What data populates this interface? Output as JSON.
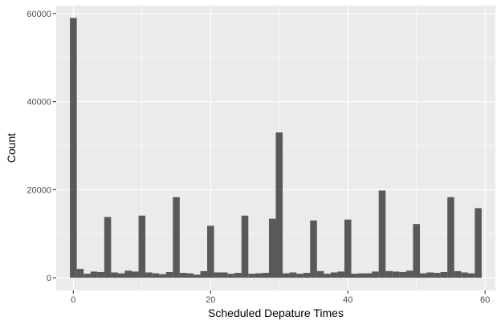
{
  "chart_data": {
    "type": "bar",
    "title": "",
    "xlabel": "Scheduled Depature Times",
    "ylabel": "Count",
    "xlim": [
      -2.5,
      61.5
    ],
    "ylim": [
      -2900,
      61800
    ],
    "xticks": [
      0,
      20,
      40,
      60
    ],
    "xtick_labels": [
      "0",
      "20",
      "40",
      "60"
    ],
    "yticks": [
      0,
      20000,
      40000,
      60000
    ],
    "ytick_labels": [
      "0",
      "20000",
      "40000",
      "60000"
    ],
    "grid": true,
    "legend": "none",
    "colors": {
      "panel": "#ebebeb",
      "grid": "#ffffff",
      "bar": "#595959"
    },
    "bin_width": 1,
    "x": [
      0,
      1,
      2,
      3,
      4,
      5,
      6,
      7,
      8,
      9,
      10,
      11,
      12,
      13,
      14,
      15,
      16,
      17,
      18,
      19,
      20,
      21,
      22,
      23,
      24,
      25,
      26,
      27,
      28,
      29,
      30,
      31,
      32,
      33,
      34,
      35,
      36,
      37,
      38,
      39,
      40,
      41,
      42,
      43,
      44,
      45,
      46,
      47,
      48,
      49,
      50,
      51,
      52,
      53,
      54,
      55,
      56,
      57,
      58,
      59
    ],
    "values": [
      59000,
      2000,
      900,
      1400,
      1300,
      13800,
      1200,
      1000,
      1600,
      1400,
      14100,
      1200,
      1000,
      800,
      1300,
      18300,
      1100,
      1000,
      700,
      1500,
      11800,
      1200,
      1200,
      900,
      1100,
      14100,
      900,
      1000,
      1100,
      13400,
      33000,
      1000,
      1200,
      900,
      1100,
      13000,
      1500,
      900,
      1200,
      1400,
      13200,
      900,
      1000,
      1000,
      1400,
      19800,
      1500,
      1400,
      1300,
      1600,
      12200,
      1000,
      1200,
      1100,
      1300,
      18300,
      1500,
      1200,
      1000,
      15800
    ]
  }
}
